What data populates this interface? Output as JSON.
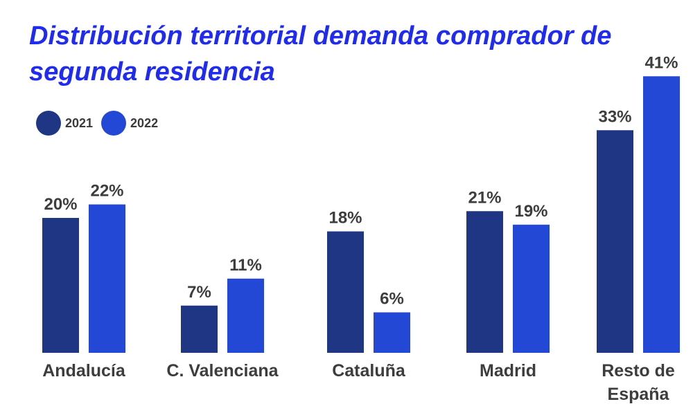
{
  "chart_data": {
    "type": "bar",
    "title": "Distribución territorial demanda comprador de segunda residencia",
    "categories": [
      "Andalucía",
      "C. Valenciana",
      "Cataluña",
      "Madrid",
      "Resto de España"
    ],
    "series": [
      {
        "name": "2021",
        "color": "#1f3685",
        "values": [
          20,
          7,
          18,
          21,
          33
        ],
        "labels": [
          "20%",
          "7%",
          "18%",
          "21%",
          "33%"
        ]
      },
      {
        "name": "2022",
        "color": "#2348d6",
        "values": [
          22,
          11,
          6,
          19,
          41
        ],
        "labels": [
          "22%",
          "11%",
          "6%",
          "19%",
          "41%"
        ]
      }
    ],
    "ylim": [
      0,
      41
    ],
    "legend": "top-left",
    "grid": false
  }
}
